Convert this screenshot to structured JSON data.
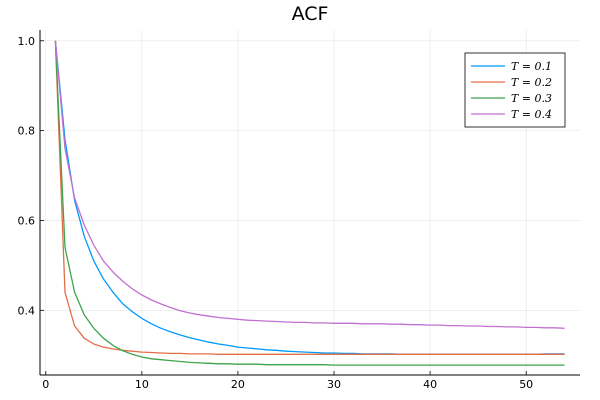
{
  "chart_data": {
    "type": "line",
    "title": "ACF",
    "xlabel": "",
    "ylabel": "",
    "xlim": [
      -0.6,
      55.6
    ],
    "ylim": [
      0.256,
      1.024
    ],
    "xticks": [
      0,
      10,
      20,
      30,
      40,
      50
    ],
    "yticks": [
      0.4,
      0.6,
      0.8,
      1.0
    ],
    "ytick_labels": [
      "0.4",
      "0.6",
      "0.8",
      "1.0"
    ],
    "grid": true,
    "legend_position": "top-right",
    "x": [
      1,
      2,
      3,
      4,
      5,
      6,
      7,
      8,
      9,
      10,
      11,
      12,
      13,
      14,
      15,
      16,
      17,
      18,
      19,
      20,
      21,
      22,
      23,
      24,
      25,
      26,
      27,
      28,
      29,
      30,
      31,
      32,
      33,
      34,
      35,
      36,
      37,
      38,
      39,
      40,
      41,
      42,
      43,
      44,
      45,
      46,
      47,
      48,
      49,
      50,
      51,
      52,
      53,
      54
    ],
    "series": [
      {
        "name": "T = 0.1",
        "color": "#009AFA",
        "values": [
          1.0,
          0.78,
          0.645,
          0.565,
          0.51,
          0.47,
          0.44,
          0.415,
          0.397,
          0.382,
          0.37,
          0.36,
          0.352,
          0.345,
          0.339,
          0.334,
          0.329,
          0.325,
          0.322,
          0.318,
          0.316,
          0.314,
          0.312,
          0.311,
          0.309,
          0.308,
          0.307,
          0.306,
          0.305,
          0.305,
          0.304,
          0.304,
          0.303,
          0.303,
          0.303,
          0.303,
          0.302,
          0.302,
          0.302,
          0.302,
          0.302,
          0.302,
          0.302,
          0.302,
          0.302,
          0.302,
          0.302,
          0.302,
          0.302,
          0.302,
          0.302,
          0.303,
          0.303,
          0.303
        ]
      },
      {
        "name": "T = 0.2",
        "color": "#E26F46",
        "values": [
          1.0,
          0.44,
          0.365,
          0.338,
          0.325,
          0.318,
          0.314,
          0.311,
          0.309,
          0.307,
          0.306,
          0.305,
          0.304,
          0.304,
          0.303,
          0.303,
          0.303,
          0.302,
          0.302,
          0.302,
          0.302,
          0.302,
          0.302,
          0.302,
          0.302,
          0.302,
          0.302,
          0.302,
          0.302,
          0.302,
          0.302,
          0.302,
          0.302,
          0.302,
          0.302,
          0.302,
          0.302,
          0.302,
          0.302,
          0.302,
          0.302,
          0.302,
          0.302,
          0.302,
          0.302,
          0.302,
          0.302,
          0.302,
          0.302,
          0.302,
          0.302,
          0.302,
          0.302,
          0.302
        ]
      },
      {
        "name": "T = 0.3",
        "color": "#3DA44D",
        "values": [
          1.0,
          0.54,
          0.44,
          0.39,
          0.36,
          0.338,
          0.322,
          0.31,
          0.302,
          0.296,
          0.292,
          0.29,
          0.288,
          0.286,
          0.284,
          0.283,
          0.282,
          0.281,
          0.281,
          0.28,
          0.28,
          0.28,
          0.279,
          0.279,
          0.279,
          0.279,
          0.279,
          0.279,
          0.279,
          0.278,
          0.278,
          0.278,
          0.278,
          0.278,
          0.278,
          0.278,
          0.278,
          0.278,
          0.278,
          0.278,
          0.278,
          0.278,
          0.278,
          0.278,
          0.278,
          0.278,
          0.278,
          0.278,
          0.278,
          0.278,
          0.278,
          0.278,
          0.278,
          0.278
        ]
      },
      {
        "name": "T = 0.4",
        "color": "#C271D2",
        "values": [
          1.0,
          0.76,
          0.65,
          0.59,
          0.545,
          0.51,
          0.485,
          0.465,
          0.448,
          0.434,
          0.423,
          0.414,
          0.406,
          0.399,
          0.394,
          0.39,
          0.387,
          0.384,
          0.382,
          0.38,
          0.378,
          0.377,
          0.376,
          0.375,
          0.374,
          0.373,
          0.373,
          0.372,
          0.372,
          0.371,
          0.371,
          0.371,
          0.37,
          0.37,
          0.37,
          0.369,
          0.369,
          0.368,
          0.368,
          0.367,
          0.367,
          0.366,
          0.366,
          0.365,
          0.365,
          0.364,
          0.364,
          0.363,
          0.363,
          0.362,
          0.362,
          0.361,
          0.361,
          0.36
        ]
      }
    ]
  }
}
